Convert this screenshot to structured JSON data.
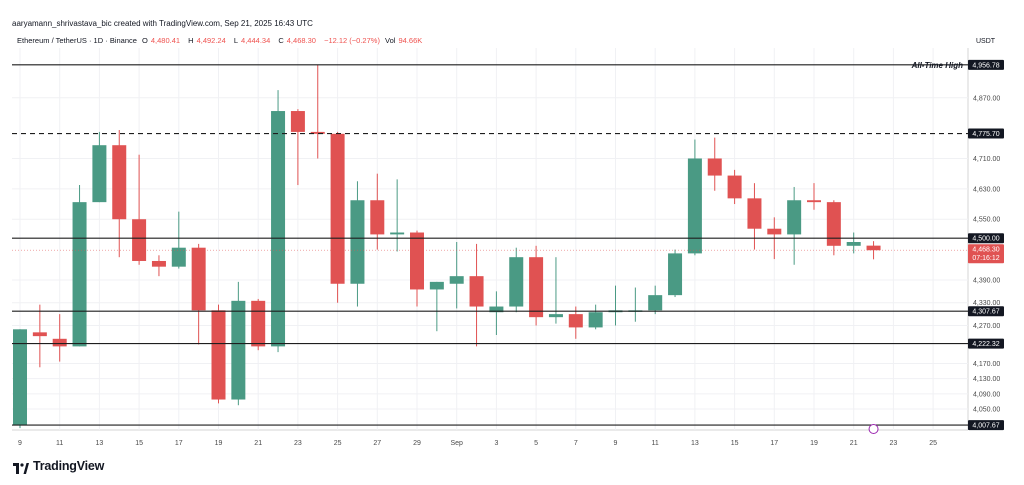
{
  "header": {
    "credit": "aaryamann_shrivastava_bic created with TradingView.com, Sep 21, 2025 16:43 UTC",
    "symbol": "Ethereum / TetherUS · 1D · Binance",
    "o_label": "O",
    "o_value": "4,480.41",
    "h_label": "H",
    "h_value": "4,492.24",
    "l_label": "L",
    "l_value": "4,444.34",
    "c_label": "C",
    "c_value": "4,468.30",
    "change": "−12.12 (−0.27%)",
    "vol_label": "Vol",
    "vol_value": "94.66K",
    "quote_currency": "USDT"
  },
  "brand": {
    "name": "TradingView"
  },
  "colors": {
    "up": "#4a9a84",
    "down": "#e05252",
    "line": "#1e1e1e",
    "current": "#e05252"
  },
  "chart_data": {
    "type": "candlestick",
    "title": "Ethereum / TetherUS · 1D · Binance",
    "ylim": [
      4000,
      4980
    ],
    "y_ticks": [
      4050,
      4090,
      4130,
      4170,
      4270,
      4330,
      4390,
      4550,
      4630,
      4710,
      4870
    ],
    "x_ticks": [
      "9",
      "11",
      "13",
      "15",
      "17",
      "19",
      "21",
      "23",
      "25",
      "27",
      "29",
      "Sep",
      "3",
      "5",
      "7",
      "9",
      "11",
      "13",
      "15",
      "17",
      "19",
      "21",
      "23",
      "25"
    ],
    "candles": [
      {
        "date": "Aug 9",
        "o": 4009,
        "h": 4260,
        "l": 4000,
        "c": 4260
      },
      {
        "date": "Aug 10",
        "o": 4252,
        "h": 4325,
        "l": 4160,
        "c": 4242
      },
      {
        "date": "Aug 11",
        "o": 4235,
        "h": 4300,
        "l": 4175,
        "c": 4215
      },
      {
        "date": "Aug 12",
        "o": 4215,
        "h": 4640,
        "l": 4215,
        "c": 4595
      },
      {
        "date": "Aug 13",
        "o": 4595,
        "h": 4780,
        "l": 4595,
        "c": 4745
      },
      {
        "date": "Aug 14",
        "o": 4745,
        "h": 4785,
        "l": 4450,
        "c": 4550
      },
      {
        "date": "Aug 15",
        "o": 4550,
        "h": 4720,
        "l": 4430,
        "c": 4440
      },
      {
        "date": "Aug 16",
        "o": 4440,
        "h": 4455,
        "l": 4400,
        "c": 4425
      },
      {
        "date": "Aug 17",
        "o": 4425,
        "h": 4570,
        "l": 4420,
        "c": 4475
      },
      {
        "date": "Aug 18",
        "o": 4475,
        "h": 4485,
        "l": 4220,
        "c": 4310
      },
      {
        "date": "Aug 19",
        "o": 4310,
        "h": 4325,
        "l": 4065,
        "c": 4075
      },
      {
        "date": "Aug 20",
        "o": 4075,
        "h": 4385,
        "l": 4060,
        "c": 4335
      },
      {
        "date": "Aug 21",
        "o": 4335,
        "h": 4340,
        "l": 4205,
        "c": 4215
      },
      {
        "date": "Aug 22",
        "o": 4215,
        "h": 4890,
        "l": 4200,
        "c": 4835
      },
      {
        "date": "Aug 23",
        "o": 4835,
        "h": 4840,
        "l": 4640,
        "c": 4780
      },
      {
        "date": "Aug 24",
        "o": 4780,
        "h": 4956.78,
        "l": 4710,
        "c": 4775
      },
      {
        "date": "Aug 25",
        "o": 4775,
        "h": 4780,
        "l": 4330,
        "c": 4380
      },
      {
        "date": "Aug 26",
        "o": 4380,
        "h": 4650,
        "l": 4320,
        "c": 4600
      },
      {
        "date": "Aug 27",
        "o": 4600,
        "h": 4670,
        "l": 4470,
        "c": 4510
      },
      {
        "date": "Aug 28",
        "o": 4510,
        "h": 4655,
        "l": 4465,
        "c": 4515
      },
      {
        "date": "Aug 29",
        "o": 4515,
        "h": 4520,
        "l": 4320,
        "c": 4365
      },
      {
        "date": "Aug 30",
        "o": 4365,
        "h": 4385,
        "l": 4255,
        "c": 4385
      },
      {
        "date": "Aug 31",
        "o": 4380,
        "h": 4490,
        "l": 4315,
        "c": 4400
      },
      {
        "date": "Sep 1",
        "o": 4400,
        "h": 4485,
        "l": 4215,
        "c": 4320
      },
      {
        "date": "Sep 2",
        "o": 4305,
        "h": 4360,
        "l": 4245,
        "c": 4320
      },
      {
        "date": "Sep 3",
        "o": 4320,
        "h": 4475,
        "l": 4305,
        "c": 4450
      },
      {
        "date": "Sep 4",
        "o": 4450,
        "h": 4480,
        "l": 4270,
        "c": 4292
      },
      {
        "date": "Sep 5",
        "o": 4292,
        "h": 4450,
        "l": 4275,
        "c": 4300
      },
      {
        "date": "Sep 6",
        "o": 4300,
        "h": 4320,
        "l": 4235,
        "c": 4265
      },
      {
        "date": "Sep 7",
        "o": 4265,
        "h": 4325,
        "l": 4260,
        "c": 4305
      },
      {
        "date": "Sep 8",
        "o": 4305,
        "h": 4375,
        "l": 4270,
        "c": 4310
      },
      {
        "date": "Sep 9",
        "o": 4310,
        "h": 4370,
        "l": 4280,
        "c": 4310
      },
      {
        "date": "Sep 10",
        "o": 4310,
        "h": 4375,
        "l": 4300,
        "c": 4350
      },
      {
        "date": "Sep 11",
        "o": 4350,
        "h": 4470,
        "l": 4345,
        "c": 4460
      },
      {
        "date": "Sep 12",
        "o": 4460,
        "h": 4760,
        "l": 4455,
        "c": 4710
      },
      {
        "date": "Sep 13",
        "o": 4710,
        "h": 4765,
        "l": 4625,
        "c": 4665
      },
      {
        "date": "Sep 14",
        "o": 4665,
        "h": 4680,
        "l": 4590,
        "c": 4605
      },
      {
        "date": "Sep 15",
        "o": 4605,
        "h": 4645,
        "l": 4470,
        "c": 4525
      },
      {
        "date": "Sep 16",
        "o": 4525,
        "h": 4555,
        "l": 4445,
        "c": 4510
      },
      {
        "date": "Sep 17",
        "o": 4510,
        "h": 4635,
        "l": 4430,
        "c": 4600
      },
      {
        "date": "Sep 18",
        "o": 4600,
        "h": 4645,
        "l": 4575,
        "c": 4595
      },
      {
        "date": "Sep 19",
        "o": 4595,
        "h": 4600,
        "l": 4455,
        "c": 4480
      },
      {
        "date": "Sep 20",
        "o": 4480,
        "h": 4515,
        "l": 4460,
        "c": 4490
      },
      {
        "date": "Sep 21",
        "o": 4480.41,
        "h": 4492.24,
        "l": 4444.34,
        "c": 4468.3
      }
    ],
    "levels": [
      {
        "price": 4956.78,
        "label": "4,956.78",
        "style": "solid",
        "annotation": "All-Time High"
      },
      {
        "price": 4775.7,
        "label": "4,775.70",
        "style": "dashed"
      },
      {
        "price": 4500.0,
        "label": "4,500.00",
        "style": "solid"
      },
      {
        "price": 4307.67,
        "label": "4,307.67",
        "style": "solid"
      },
      {
        "price": 4222.32,
        "label": "4,222.32",
        "style": "solid"
      },
      {
        "price": 4007.67,
        "label": "4,007.67",
        "style": "solid"
      }
    ],
    "current": {
      "price": 4468.3,
      "label": "4,468.30",
      "countdown": "07:16:12"
    }
  }
}
